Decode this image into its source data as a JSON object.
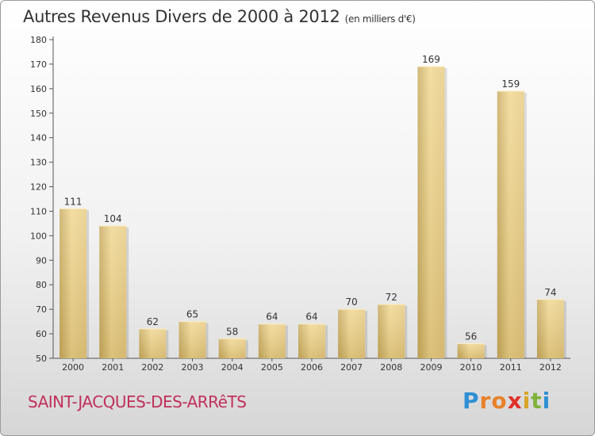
{
  "header": {
    "title": "Autres Revenus Divers de 2000 à 2012",
    "subtitle": "(en milliers d'€)"
  },
  "footer": {
    "commune": "SAINT-JACQUES-DES-ARRêTS",
    "logo_text": "Proxiti",
    "logo_letters": [
      "P",
      "r",
      "o",
      "x",
      "i",
      "t",
      "i"
    ],
    "logo_colors": [
      "#2e8fd4",
      "#e8812a",
      "#e8812a",
      "#e0312a",
      "#d9a324",
      "#7fb33a",
      "#2e8fd4"
    ]
  },
  "chart_data": {
    "type": "bar",
    "categories": [
      "2000",
      "2001",
      "2002",
      "2003",
      "2004",
      "2005",
      "2006",
      "2007",
      "2008",
      "2009",
      "2010",
      "2011",
      "2012"
    ],
    "values": [
      111,
      104,
      62,
      65,
      58,
      64,
      64,
      70,
      72,
      169,
      56,
      159,
      74
    ],
    "data_labels": [
      "111",
      "104",
      "62",
      "65",
      "58",
      "64",
      "64",
      "70",
      "72",
      "169",
      "56",
      "159",
      "74"
    ],
    "ylim": [
      50,
      180
    ],
    "yticks": [
      50,
      60,
      70,
      80,
      90,
      100,
      110,
      120,
      130,
      140,
      150,
      160,
      170,
      180
    ],
    "xlabel": "",
    "ylabel": "",
    "grid": false,
    "bar_color": "#e8cc86"
  }
}
